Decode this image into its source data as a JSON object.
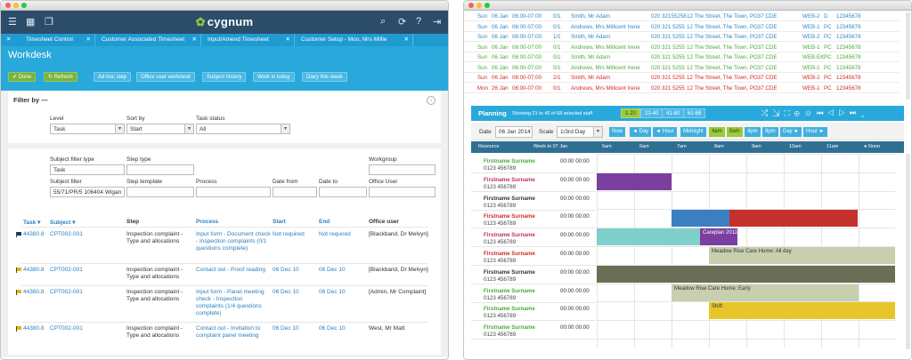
{
  "left": {
    "brand": "cygnum",
    "tabs": [
      "Timesheet Control",
      "Customer Associated Timesheet",
      "Input/Amend Timesheet",
      "Customer Setup - Moo, Mrs Millie"
    ],
    "title": "Workdesk",
    "toolbar": [
      "Done",
      "Refresh",
      "Ad-hoc step",
      "Office user workdesk",
      "Subject history",
      "Work in today",
      "Diary this week"
    ],
    "filter_title": "Filter by —",
    "filter1": [
      {
        "label": "Level",
        "value": "Task"
      },
      {
        "label": "Sort by",
        "value": "Start"
      },
      {
        "label": "Task status",
        "value": "All"
      }
    ],
    "filter2_labels": [
      "Subject filter type",
      "Step type",
      "Workgroup",
      "Subject filter",
      "Step template",
      "Process",
      "Date from",
      "Date to",
      "Office User"
    ],
    "filter2_values": {
      "subject_filter_type": "Task",
      "subject_filter": "55/71/PR/5 106404 Wigan"
    },
    "columns": [
      "Task",
      "Subject",
      "Step",
      "Process",
      "Start",
      "End",
      "Office user"
    ],
    "rows": [
      {
        "task": "44380.8",
        "subject": "CPT002-001",
        "step": "Inspection complaint - Type and allocations",
        "process": "Input form - Document check - Inspection complaints (0/1 questions complete)",
        "start": "Not required",
        "end": "Not required",
        "user": "[Blackband, Dr Melvyn]",
        "flag": "#223366"
      },
      {
        "task": "44380.8",
        "subject": "CPT002-001",
        "step": "Inspection complaint - Type and allocations",
        "process": "Contact out - Proof reading",
        "start": "06 Dec 10",
        "end": "06 Dec 10",
        "user": "[Blackband, Dr Melvyn]",
        "flag": "#e8b400"
      },
      {
        "task": "44380.8",
        "subject": "CPT002-001",
        "step": "Inspection complaint - Type and allocations",
        "process": "Input form - Panel meeting check - Inspection complaints (1/4 questions complete)",
        "start": "06 Dec 10",
        "end": "06 Dec 10",
        "user": "[Admin, Mr Complaint]",
        "flag": "#e8b400"
      },
      {
        "task": "44380.8",
        "subject": "CPT002-001",
        "step": "Inspection complaint - Type and allocations",
        "process": "Contact out - Invitation to complaint panel meeting",
        "start": "06 Dec 10",
        "end": "06 Dec 10",
        "user": "West, Mr Matt",
        "flag": "#e8b400"
      }
    ]
  },
  "right": {
    "table": [
      {
        "day": "Sun",
        "date": "06 Jan",
        "time": "06:00-07:00",
        "code": "0/1",
        "name": "Smith, Mr Adam",
        "tel": "020 32155258",
        "addr": "12 The Street, The Town, PO37 CDE",
        "web": "WEB-2",
        "d": "D",
        "num": "12345678",
        "color": "#2a8bc7"
      },
      {
        "day": "Sun",
        "date": "06 Jan",
        "time": "06:00-07:00",
        "code": "0/1",
        "name": "Andrews, Mrs Millicent Irene",
        "tel": "020 321 5255",
        "addr": "12 The Street, The Town, PO37 CDE",
        "web": "WEB-1",
        "d": "PC",
        "num": "12345678",
        "color": "#2a8bc7"
      },
      {
        "day": "Sun",
        "date": "06 Jan",
        "time": "06:00-07:00",
        "code": "1/1",
        "name": "Smith, Mr Adam",
        "tel": "020 321 5255",
        "addr": "12 The Street, The Town, PO37 CDE",
        "web": "WEB-2",
        "d": "PC",
        "num": "12345678",
        "color": "#2a8bc7"
      },
      {
        "day": "Sun",
        "date": "06 Jan",
        "time": "06:00-07:00",
        "code": "0/1",
        "name": "Andrews, Mrs Millicent Irene",
        "tel": "020 321 5255",
        "addr": "12 The Street, The Town, PO37 CDE",
        "web": "WEB-1",
        "d": "PC",
        "num": "12345678",
        "color": "#4caa3a"
      },
      {
        "day": "Sun",
        "date": "06 Jan",
        "time": "06:00-07:00",
        "code": "0/1",
        "name": "Smith, Mr Adam",
        "tel": "020 321 5255",
        "addr": "12 The Street, The Town, PO37 CDE",
        "web": "WEB-EK",
        "d": "PC",
        "num": "12345678",
        "color": "#4caa3a"
      },
      {
        "day": "Sun",
        "date": "06 Jan",
        "time": "06:00-07:00",
        "code": "0/1",
        "name": "Andrews, Mrs Millicent Irene",
        "tel": "020 321 5255",
        "addr": "12 The Street, The Town, PO37 CDE",
        "web": "WEB-1",
        "d": "PC",
        "num": "12345678",
        "color": "#4caa3a"
      },
      {
        "day": "Sun",
        "date": "06 Jan",
        "time": "06:00-07:00",
        "code": "2/1",
        "name": "Smith, Mr Adam",
        "tel": "020 321 5255",
        "addr": "12 The Street, The Town, PO37 CDE",
        "web": "WEB-2",
        "d": "PC",
        "num": "12345678",
        "color": "#d42a2a"
      },
      {
        "day": "Mon",
        "date": "26 Jan",
        "time": "06:00-07:00",
        "code": "0/1",
        "name": "Andrews, Mrs Millicent Irene",
        "tel": "020 321 5255",
        "addr": "12 The Street, The Town, PO37 CDE",
        "web": "WEB-1",
        "d": "PC",
        "num": "12345678",
        "color": "#d42a2a"
      }
    ],
    "planning": {
      "title": "Planning",
      "subtitle": "Showing 21 to 40 of 68 selected staff",
      "ranges": [
        "1-20",
        "21-40",
        "41-60",
        "61-68"
      ],
      "date_label": "Date",
      "date_value": "06 Jan 2014",
      "scale_label": "Scale",
      "scale_value": "1/3rd Day",
      "nav": [
        "Now",
        "◄ Day",
        "◄ Hour",
        "Midnight",
        "4am",
        "8am",
        "4pm",
        "8pm",
        "Day ►",
        "Hour ►"
      ],
      "col_resource": "Resource",
      "col_week": "Week to 07 Jan",
      "hours": [
        "5am",
        "6am",
        "7am",
        "8am",
        "9am",
        "10am",
        "11am",
        "● Noon"
      ],
      "resources": [
        {
          "name": "Firstname Surname",
          "phone": "0123 456789",
          "time": "00:00  00:00",
          "color": "#4caa3a"
        },
        {
          "name": "Firstname Surname",
          "phone": "0123 456789",
          "time": "00:00  00:00",
          "color": "#c22e6b"
        },
        {
          "name": "Firstname Surname",
          "phone": "0123 456789",
          "time": "00:00  00:00",
          "color": "#333"
        },
        {
          "name": "Firstname Surname",
          "phone": "0123 456789",
          "time": "00:00  00:00",
          "color": "#d42a2a"
        },
        {
          "name": "Firstname Surname",
          "phone": "0123 456789",
          "time": "00:00  00:00",
          "color": "#c22e6b"
        },
        {
          "name": "Firstname Surname",
          "phone": "0123 456789",
          "time": "00:00  00:00",
          "color": "#d42a2a"
        },
        {
          "name": "Firstname Surname",
          "phone": "0123 456789",
          "time": "00:00  00:00",
          "color": "#333"
        },
        {
          "name": "Firstname Surname",
          "phone": "0123 456789",
          "time": "00:00  00:00",
          "color": "#4caa3a"
        },
        {
          "name": "Firstname Surname",
          "phone": "0123 456789",
          "time": "00:00  00:00",
          "color": "#4caa3a"
        },
        {
          "name": "Firstname Surname",
          "phone": "0123 456789",
          "time": "00:00  00:00",
          "color": "#4caa3a"
        }
      ],
      "bars": [
        {
          "label": "",
          "color": "#7b3fa0"
        },
        {
          "label": "",
          "color": "#3b7fc1"
        },
        {
          "label": "",
          "color": "#c6302e"
        },
        {
          "label": "",
          "color": "#7fd0cc"
        },
        {
          "label": "Careplan 2011",
          "color": "#7b3fa0"
        },
        {
          "label": "Meadow Rise Care Home: All day",
          "color": "#c8cfae"
        },
        {
          "label": "",
          "color": "#6b6d56"
        },
        {
          "label": "Meadow Rise Care Home: Early",
          "color": "#c8cfae"
        },
        {
          "label": "Shift",
          "color": "#e8c62b"
        }
      ]
    }
  }
}
